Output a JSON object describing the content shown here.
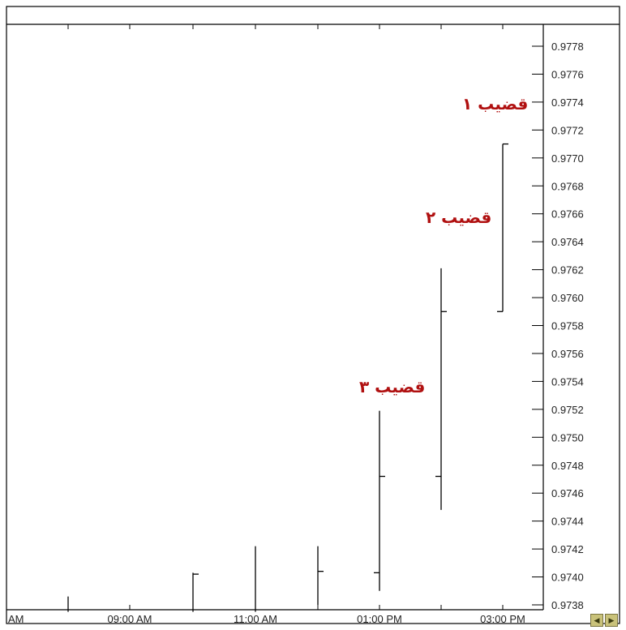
{
  "chart_data": {
    "type": "ohlc",
    "y_ticks": [
      "0.9738",
      "0.9740",
      "0.9742",
      "0.9744",
      "0.9746",
      "0.9748",
      "0.9750",
      "0.9752",
      "0.9754",
      "0.9756",
      "0.9758",
      "0.9760",
      "0.9762",
      "0.9764",
      "0.9766",
      "0.9768",
      "0.9770",
      "0.9772",
      "0.9774",
      "0.9776",
      "0.9778"
    ],
    "ylim": [
      0.97368,
      0.97795
    ],
    "x_ticks": [
      "AM",
      "09:00 AM",
      "11:00 AM",
      "01:00 PM",
      "03:00 PM"
    ],
    "bars": [
      {
        "low": 0.97375,
        "high": 0.97386
      },
      {
        "low": 0.97375,
        "high": 0.97403,
        "close": 0.97402
      },
      {
        "low": 0.97375,
        "high": 0.97422
      },
      {
        "low": 0.9738,
        "high": 0.97422,
        "close": 0.97404
      },
      {
        "low": 0.9739,
        "high": 0.97519,
        "open": 0.97403,
        "close": 0.97472
      },
      {
        "low": 0.97448,
        "high": 0.97621,
        "open": 0.97472,
        "close": 0.9759
      },
      {
        "low": 0.9759,
        "high": 0.9771,
        "open": 0.9759,
        "close": 0.9771
      }
    ],
    "annotations": [
      {
        "text": "قضيب ١",
        "target_bar": 7
      },
      {
        "text": "قضيب ٢",
        "target_bar": 6
      },
      {
        "text": "قضيب ٣",
        "target_bar": 5
      }
    ]
  },
  "controls": {
    "scroll_left_icon": "scroll-left-icon",
    "scroll_right_icon": "scroll-right-icon",
    "scroll_left_glyph": "◀",
    "scroll_right_glyph": "▶"
  }
}
